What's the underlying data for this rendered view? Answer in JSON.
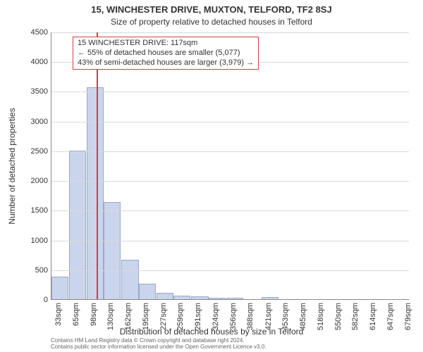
{
  "title": "15, WINCHESTER DRIVE, MUXTON, TELFORD, TF2 8SJ",
  "subtitle": "Size of property relative to detached houses in Telford",
  "ylabel": "Number of detached properties",
  "xlabel": "Distribution of detached houses by size in Telford",
  "footer1": "Contains HM Land Registry data © Crown copyright and database right 2024.",
  "footer2": "Contains public sector information licensed under the Open Government Licence v3.0.",
  "annotation": {
    "line1": "15 WINCHESTER DRIVE: 117sqm",
    "line2": "← 55% of detached houses are smaller (5,077)",
    "line3": "43% of semi-detached houses are larger (3,979) →"
  },
  "chart": {
    "type": "histogram",
    "background_color": "#ffffff",
    "bar_fill": "#cad4ec",
    "bar_stroke": "#9aa7c7",
    "grid_color": "#d9d9d9",
    "axis_color": "#888888",
    "marker_color": "#d04040",
    "annotation_border": "#d04040",
    "text_color": "#333333",
    "title_fontsize": 13,
    "subtitle_fontsize": 12,
    "label_fontsize": 12,
    "tick_fontsize": 11,
    "footer_fontsize": 8,
    "annotation_fontsize": 11,
    "xlim": [
      33,
      695
    ],
    "ylim": [
      0,
      4500
    ],
    "ytick_step": 500,
    "yticks": [
      0,
      500,
      1000,
      1500,
      2000,
      2500,
      3000,
      3500,
      4000,
      4500
    ],
    "xticks": [
      33,
      65,
      98,
      130,
      162,
      195,
      227,
      259,
      291,
      324,
      356,
      388,
      421,
      453,
      485,
      518,
      550,
      582,
      614,
      647,
      679
    ],
    "xtick_unit": "sqm",
    "bin_width": 32.4,
    "bars": [
      {
        "x0": 33,
        "x1": 65,
        "count": 380
      },
      {
        "x0": 65,
        "x1": 98,
        "count": 2500
      },
      {
        "x0": 98,
        "x1": 130,
        "count": 3570
      },
      {
        "x0": 130,
        "x1": 162,
        "count": 1640
      },
      {
        "x0": 162,
        "x1": 195,
        "count": 660
      },
      {
        "x0": 195,
        "x1": 227,
        "count": 260
      },
      {
        "x0": 227,
        "x1": 259,
        "count": 110
      },
      {
        "x0": 259,
        "x1": 291,
        "count": 60
      },
      {
        "x0": 291,
        "x1": 324,
        "count": 50
      },
      {
        "x0": 324,
        "x1": 356,
        "count": 20
      },
      {
        "x0": 356,
        "x1": 388,
        "count": 20
      },
      {
        "x0": 388,
        "x1": 421,
        "count": 0
      },
      {
        "x0": 421,
        "x1": 453,
        "count": 30
      },
      {
        "x0": 453,
        "x1": 485,
        "count": 0
      },
      {
        "x0": 485,
        "x1": 518,
        "count": 0
      },
      {
        "x0": 518,
        "x1": 550,
        "count": 0
      },
      {
        "x0": 550,
        "x1": 582,
        "count": 0
      },
      {
        "x0": 582,
        "x1": 614,
        "count": 0
      },
      {
        "x0": 614,
        "x1": 647,
        "count": 0
      },
      {
        "x0": 647,
        "x1": 679,
        "count": 0
      }
    ],
    "marker_x": 117
  }
}
